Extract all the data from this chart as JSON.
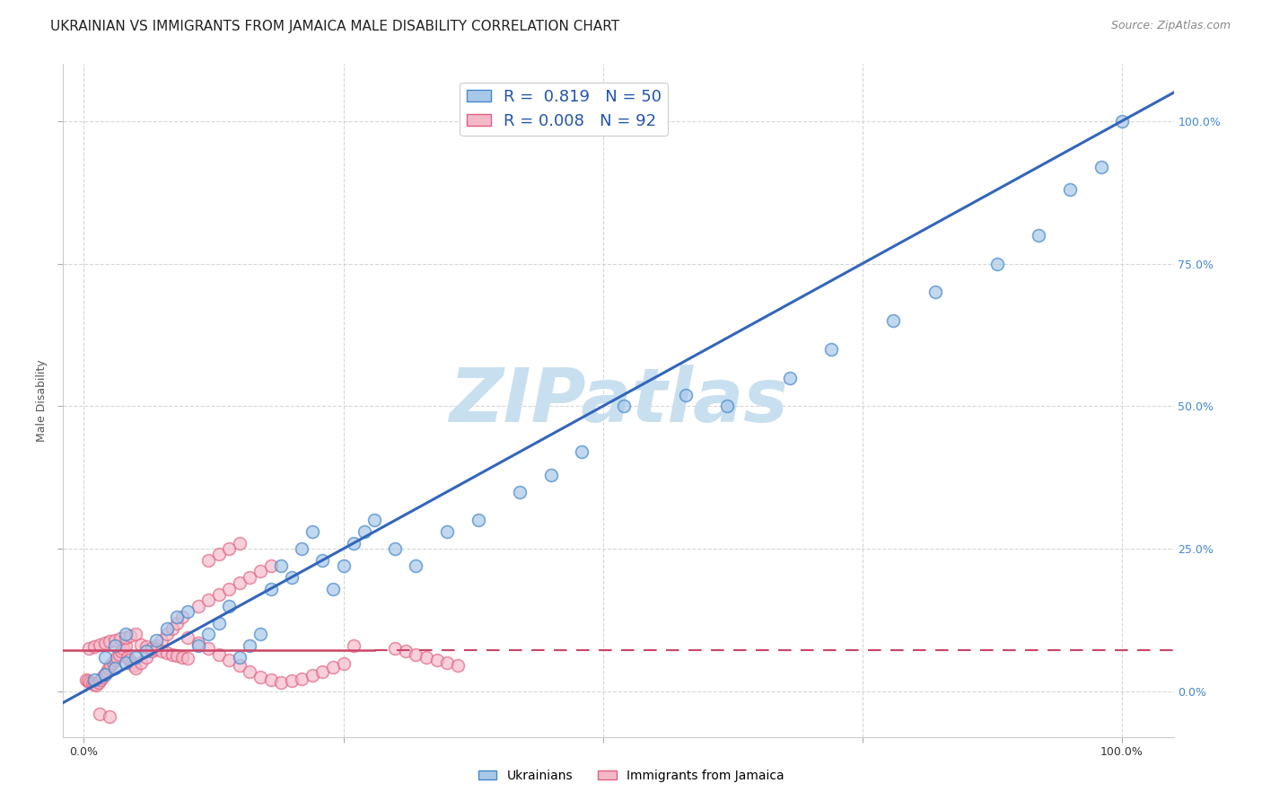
{
  "title": "UKRAINIAN VS IMMIGRANTS FROM JAMAICA MALE DISABILITY CORRELATION CHART",
  "source": "Source: ZipAtlas.com",
  "ylabel": "Male Disability",
  "watermark": "ZIPatlas",
  "legend_blue_R": "0.819",
  "legend_blue_N": "50",
  "legend_pink_R": "0.008",
  "legend_pink_N": "92",
  "blue_color": "#a8c8e8",
  "blue_edge_color": "#4488cc",
  "pink_color": "#f4b8c8",
  "pink_edge_color": "#e06080",
  "blue_line_color": "#3366bb",
  "pink_line_color": "#cc4466",
  "blue_scatter_x": [
    0.01,
    0.02,
    0.02,
    0.03,
    0.03,
    0.04,
    0.04,
    0.05,
    0.06,
    0.07,
    0.08,
    0.09,
    0.1,
    0.11,
    0.12,
    0.13,
    0.14,
    0.15,
    0.16,
    0.17,
    0.18,
    0.19,
    0.2,
    0.21,
    0.22,
    0.23,
    0.24,
    0.25,
    0.26,
    0.27,
    0.28,
    0.3,
    0.32,
    0.35,
    0.38,
    0.42,
    0.45,
    0.48,
    0.52,
    0.58,
    0.62,
    0.68,
    0.72,
    0.78,
    0.82,
    0.88,
    0.92,
    0.95,
    0.98,
    1.0
  ],
  "blue_scatter_y": [
    0.02,
    0.03,
    0.06,
    0.04,
    0.08,
    0.05,
    0.1,
    0.06,
    0.07,
    0.09,
    0.11,
    0.13,
    0.14,
    0.08,
    0.1,
    0.12,
    0.15,
    0.06,
    0.08,
    0.1,
    0.18,
    0.22,
    0.2,
    0.25,
    0.28,
    0.23,
    0.18,
    0.22,
    0.26,
    0.28,
    0.3,
    0.25,
    0.22,
    0.28,
    0.3,
    0.35,
    0.38,
    0.42,
    0.5,
    0.52,
    0.5,
    0.55,
    0.6,
    0.65,
    0.7,
    0.75,
    0.8,
    0.88,
    0.92,
    1.0
  ],
  "pink_scatter_x": [
    0.002,
    0.004,
    0.006,
    0.008,
    0.01,
    0.012,
    0.014,
    0.016,
    0.018,
    0.02,
    0.022,
    0.024,
    0.026,
    0.028,
    0.03,
    0.032,
    0.034,
    0.036,
    0.038,
    0.04,
    0.042,
    0.044,
    0.046,
    0.048,
    0.05,
    0.055,
    0.06,
    0.065,
    0.07,
    0.075,
    0.08,
    0.085,
    0.09,
    0.095,
    0.1,
    0.11,
    0.12,
    0.13,
    0.14,
    0.15,
    0.16,
    0.17,
    0.18,
    0.19,
    0.2,
    0.21,
    0.22,
    0.23,
    0.24,
    0.25,
    0.005,
    0.01,
    0.015,
    0.02,
    0.025,
    0.03,
    0.035,
    0.04,
    0.045,
    0.05,
    0.055,
    0.06,
    0.065,
    0.07,
    0.075,
    0.08,
    0.085,
    0.09,
    0.095,
    0.1,
    0.11,
    0.12,
    0.13,
    0.14,
    0.15,
    0.16,
    0.17,
    0.18,
    0.26,
    0.3,
    0.31,
    0.32,
    0.33,
    0.34,
    0.35,
    0.36,
    0.12,
    0.13,
    0.14,
    0.15,
    0.015,
    0.025
  ],
  "pink_scatter_y": [
    0.02,
    0.018,
    0.016,
    0.014,
    0.012,
    0.01,
    0.015,
    0.02,
    0.025,
    0.03,
    0.035,
    0.04,
    0.045,
    0.05,
    0.055,
    0.06,
    0.065,
    0.07,
    0.075,
    0.08,
    0.06,
    0.055,
    0.05,
    0.045,
    0.04,
    0.05,
    0.06,
    0.07,
    0.08,
    0.09,
    0.1,
    0.11,
    0.12,
    0.13,
    0.095,
    0.085,
    0.075,
    0.065,
    0.055,
    0.045,
    0.035,
    0.025,
    0.02,
    0.015,
    0.018,
    0.022,
    0.028,
    0.035,
    0.042,
    0.048,
    0.075,
    0.078,
    0.082,
    0.085,
    0.088,
    0.09,
    0.092,
    0.095,
    0.098,
    0.1,
    0.082,
    0.079,
    0.076,
    0.073,
    0.07,
    0.068,
    0.065,
    0.062,
    0.06,
    0.058,
    0.15,
    0.16,
    0.17,
    0.18,
    0.19,
    0.2,
    0.21,
    0.22,
    0.08,
    0.075,
    0.07,
    0.065,
    0.06,
    0.055,
    0.05,
    0.045,
    0.23,
    0.24,
    0.25,
    0.26,
    -0.04,
    -0.045
  ],
  "xlim": [
    -0.02,
    1.05
  ],
  "ylim": [
    -0.08,
    1.1
  ],
  "xticks": [
    0.0,
    0.25,
    0.5,
    0.75,
    1.0
  ],
  "yticks": [
    0.0,
    0.25,
    0.5,
    0.75,
    1.0
  ],
  "ytick_labels_right": [
    "0.0%",
    "25.0%",
    "50.0%",
    "75.0%",
    "100.0%"
  ],
  "blue_trend_x0": -0.02,
  "blue_trend_x1": 1.05,
  "blue_trend_y0": -0.02,
  "blue_trend_y1": 1.05,
  "pink_trend_y_const": 0.072,
  "pink_trend_x0": -0.02,
  "pink_trend_x1": 1.05,
  "background_color": "#ffffff",
  "watermark_color": "#c8dff0",
  "grid_color": "#cccccc",
  "title_fontsize": 11,
  "source_fontsize": 9,
  "axis_label_fontsize": 9,
  "tick_fontsize": 9,
  "legend_fontsize": 13
}
